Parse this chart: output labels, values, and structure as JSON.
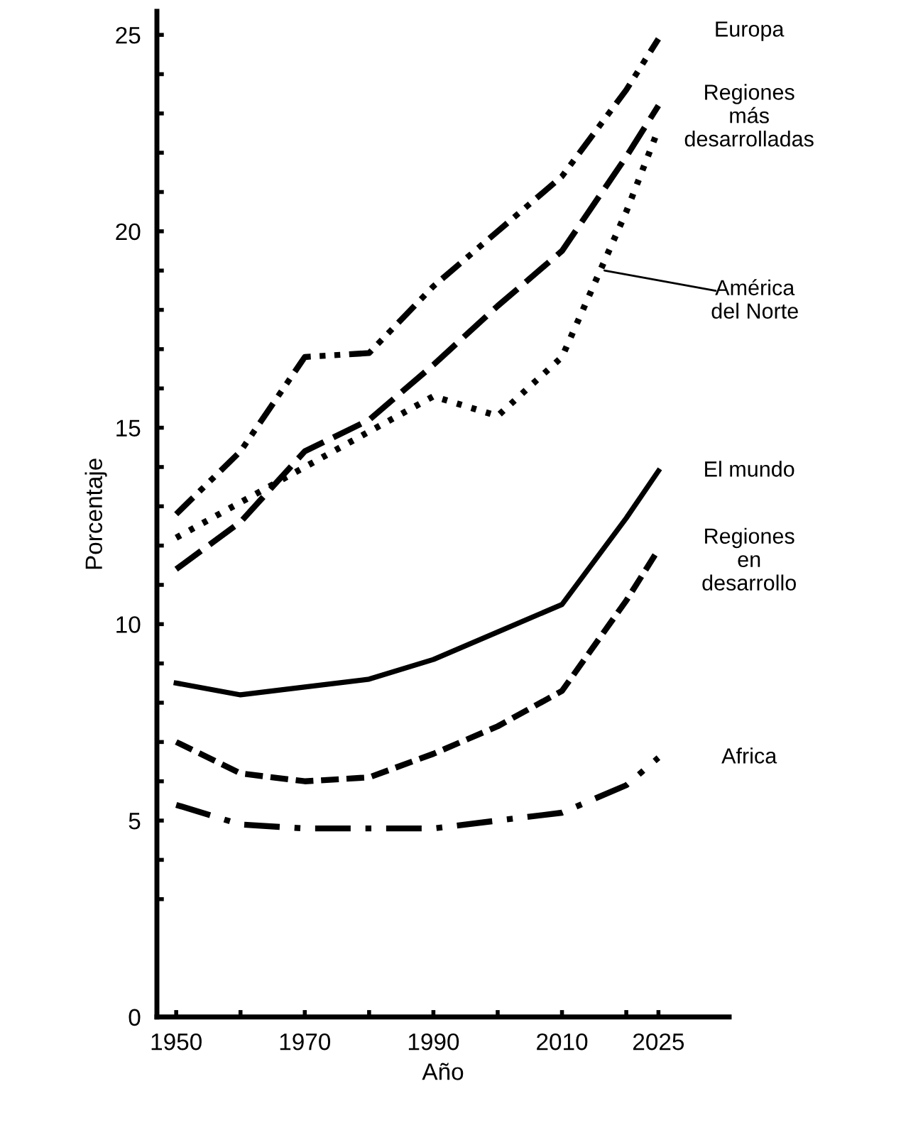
{
  "chart_data": {
    "type": "line",
    "xlabel": "Año",
    "ylabel": "Porcentaje",
    "x": [
      1950,
      1960,
      1970,
      1980,
      1990,
      2000,
      2010,
      2020,
      2025
    ],
    "series": [
      {
        "name": "Europa",
        "color": "#000000",
        "line_style": "dashdotdot",
        "values": [
          12.8,
          14.4,
          16.8,
          16.9,
          18.6,
          20.0,
          21.4,
          23.6,
          24.9
        ]
      },
      {
        "name": "Regiones más desarrolladas",
        "color": "#000000",
        "line_style": "dashed",
        "values": [
          11.4,
          12.6,
          14.4,
          15.2,
          16.6,
          18.1,
          19.5,
          21.9,
          23.2
        ]
      },
      {
        "name": "América del Norte",
        "color": "#000000",
        "line_style": "dotted",
        "values": [
          12.2,
          13.1,
          14.0,
          14.9,
          15.8,
          15.3,
          16.8,
          20.5,
          22.6
        ]
      },
      {
        "name": "El mundo",
        "color": "#000000",
        "line_style": "solid",
        "values": [
          8.5,
          8.2,
          8.4,
          8.6,
          9.1,
          9.8,
          10.5,
          12.7,
          13.9
        ]
      },
      {
        "name": "Regiones en desarrollo",
        "color": "#000000",
        "line_style": "dashed",
        "values": [
          7.0,
          6.2,
          6.0,
          6.1,
          6.7,
          7.4,
          8.3,
          10.6,
          11.9
        ]
      },
      {
        "name": "Africa",
        "color": "#000000",
        "line_style": "dashdot",
        "values": [
          5.4,
          4.9,
          4.8,
          4.8,
          4.8,
          5.0,
          5.2,
          5.9,
          6.6
        ]
      }
    ],
    "xlim": [
      1947,
      2036
    ],
    "ylim": [
      0,
      25.6
    ],
    "xticks": [
      1950,
      {
        "value": 1960,
        "label": null
      },
      1970,
      {
        "value": 1980,
        "label": null
      },
      1990,
      {
        "value": 2000,
        "label": null
      },
      2010,
      {
        "value": 2020,
        "label": null
      },
      2025
    ],
    "yticks": [
      0,
      {
        "value": 3,
        "label": null
      },
      {
        "value": 4,
        "label": null
      },
      5,
      {
        "value": 6,
        "label": null
      },
      {
        "value": 7,
        "label": null
      },
      {
        "value": 8,
        "label": null
      },
      {
        "value": 9,
        "label": null
      },
      10,
      {
        "value": 11,
        "label": null
      },
      {
        "value": 12,
        "label": null
      },
      {
        "value": 13,
        "label": null
      },
      {
        "value": 14,
        "label": null
      },
      15,
      {
        "value": 16,
        "label": null
      },
      {
        "value": 17,
        "label": null
      },
      {
        "value": 18,
        "label": null
      },
      {
        "value": 19,
        "label": null
      },
      20,
      {
        "value": 21,
        "label": null
      },
      {
        "value": 22,
        "label": null
      },
      {
        "value": 23,
        "label": null
      },
      {
        "value": 24,
        "label": null
      },
      25
    ],
    "grid": false,
    "legend": false,
    "marker": "none"
  }
}
